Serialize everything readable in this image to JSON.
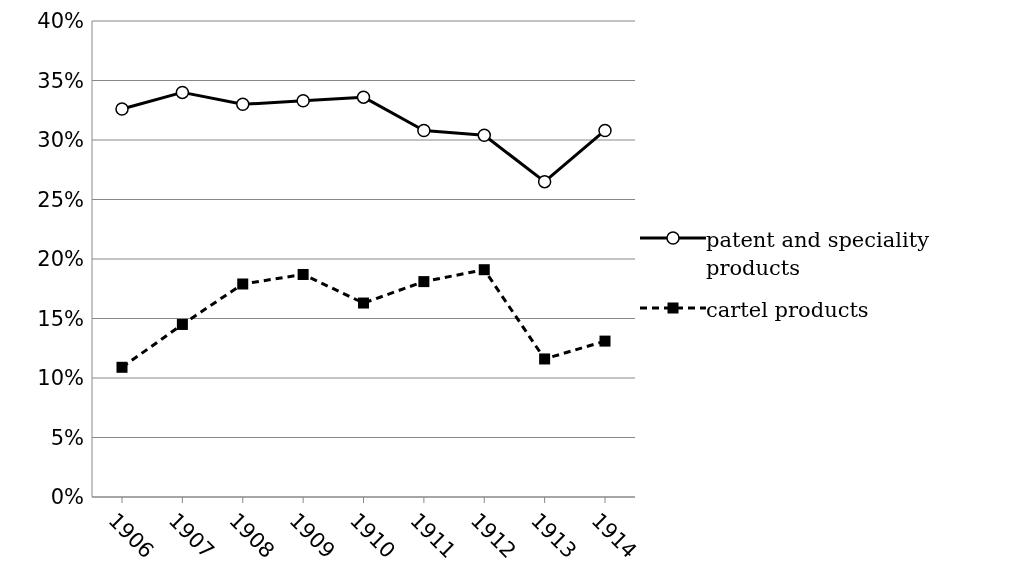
{
  "chart_data": {
    "type": "line",
    "categories": [
      "1906",
      "1907",
      "1908",
      "1909",
      "1910",
      "1911",
      "1912",
      "1913",
      "1914"
    ],
    "series": [
      {
        "name": "patent and speciality products",
        "color": "#000000",
        "marker": "circle",
        "line_style": "solid",
        "values": [
          32.6,
          34.0,
          33.0,
          33.3,
          33.6,
          30.8,
          30.4,
          26.5,
          30.8
        ]
      },
      {
        "name": "cartel products",
        "color": "#000000",
        "marker": "square",
        "line_style": "dashed",
        "values": [
          10.9,
          14.5,
          17.9,
          18.7,
          16.3,
          18.1,
          19.1,
          11.6,
          13.1
        ]
      }
    ],
    "ylim": [
      0,
      40
    ],
    "yticks": [
      {
        "value": 0,
        "label": "0%"
      },
      {
        "value": 5,
        "label": "5%"
      },
      {
        "value": 10,
        "label": "10%"
      },
      {
        "value": 15,
        "label": "15%"
      },
      {
        "value": 20,
        "label": "20%"
      },
      {
        "value": 25,
        "label": "25%"
      },
      {
        "value": 30,
        "label": "30%"
      },
      {
        "value": 35,
        "label": "35%"
      },
      {
        "value": 40,
        "label": "40%"
      }
    ],
    "grid": "y",
    "legend": "right"
  }
}
